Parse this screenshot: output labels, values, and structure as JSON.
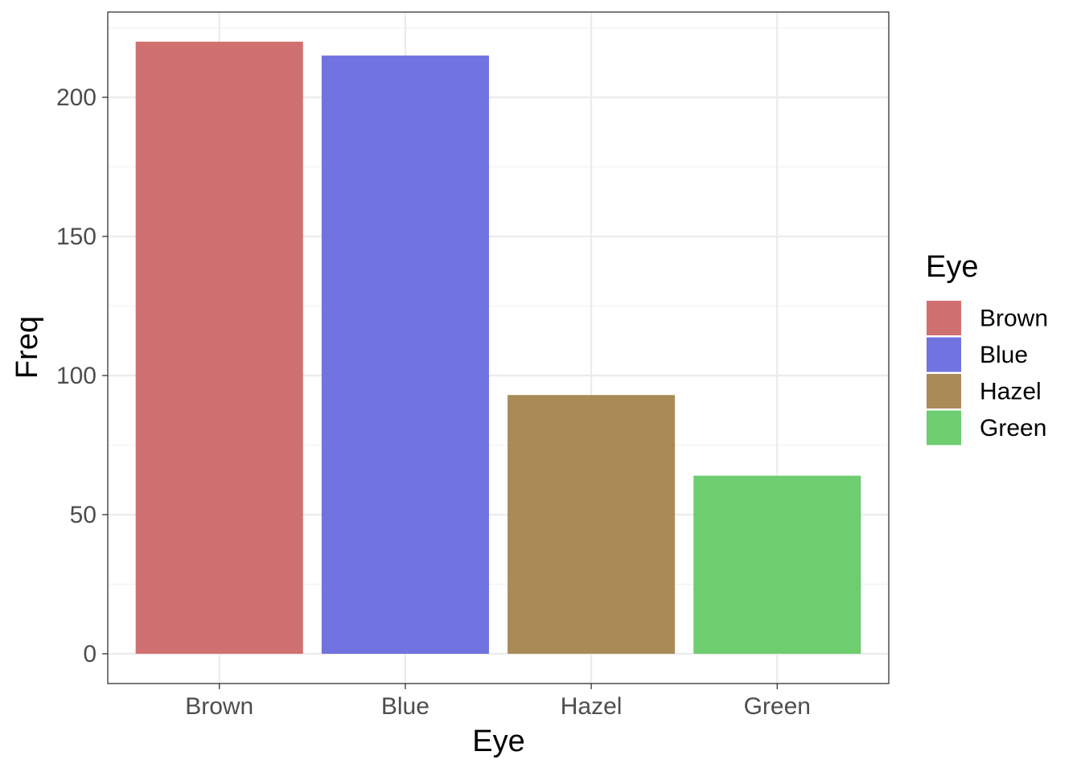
{
  "chart_data": {
    "type": "bar",
    "categories": [
      "Brown",
      "Blue",
      "Hazel",
      "Green"
    ],
    "values": [
      220,
      215,
      93,
      64
    ],
    "colors": [
      "#D07070",
      "#7073E0",
      "#A98B58",
      "#6DCD6F"
    ],
    "xlabel": "Eye",
    "ylabel": "Freq",
    "ylim": [
      0,
      231
    ],
    "yticks": [
      0,
      50,
      100,
      150,
      200
    ],
    "grid": true,
    "legend": {
      "title": "Eye",
      "position": "right",
      "entries": [
        "Brown",
        "Blue",
        "Hazel",
        "Green"
      ]
    }
  }
}
